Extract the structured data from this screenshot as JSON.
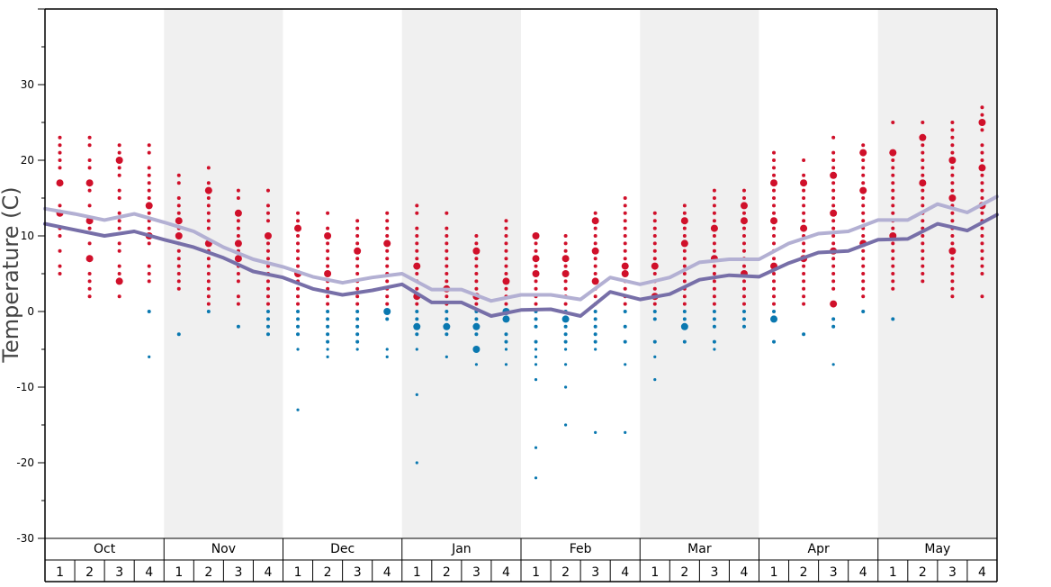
{
  "chart_data": {
    "type": "scatter",
    "title": "",
    "ylabel": "Temperature (C)",
    "xlabel": "",
    "ylim": [
      -30,
      40
    ],
    "y_ticks": [
      "30",
      "20",
      "10",
      "0",
      "-10",
      "-20",
      "-30"
    ],
    "months": [
      "Oct",
      "Nov",
      "Dec",
      "Jan",
      "Feb",
      "Mar",
      "Apr",
      "May"
    ],
    "weeks": [
      "1",
      "2",
      "3",
      "4"
    ],
    "colors": {
      "warm_points": "#d0102a",
      "cold_points": "#0a78b0",
      "upper_line": "#b3b0d3",
      "lower_line": "#776fa8",
      "shaded_month": "#f0f0f0"
    },
    "series": [
      {
        "values": [
          13.6,
          12.9,
          12.1,
          12.9,
          11.8,
          10.6,
          8.5,
          6.9,
          5.9,
          4.6,
          3.8,
          4.5,
          5.0,
          2.9,
          2.9,
          1.4,
          2.2,
          2.2,
          1.6,
          4.5,
          3.6,
          4.5,
          6.5,
          6.9,
          6.9,
          9.0,
          10.3,
          10.6,
          12.1,
          12.1,
          14.2,
          13.1,
          15.2
        ]
      },
      {
        "values": [
          11.6,
          10.8,
          10.0,
          10.6,
          9.5,
          8.5,
          7.1,
          5.3,
          4.5,
          3.0,
          2.2,
          2.8,
          3.6,
          1.2,
          1.2,
          -0.6,
          0.2,
          0.3,
          -0.6,
          2.6,
          1.6,
          2.3,
          4.2,
          4.8,
          4.6,
          6.4,
          7.8,
          8.0,
          9.5,
          9.6,
          11.6,
          10.7,
          12.8
        ]
      }
    ],
    "points": [
      {
        "week": 1,
        "temps": [
          23,
          22,
          21,
          20,
          19,
          17,
          14,
          13,
          11,
          10,
          8,
          6,
          5
        ],
        "big": [
          17,
          13
        ]
      },
      {
        "week": 2,
        "temps": [
          23,
          22,
          20,
          19,
          17,
          16,
          14,
          12,
          11,
          9,
          7,
          5,
          4,
          3,
          2
        ],
        "big": [
          17,
          12,
          7
        ]
      },
      {
        "week": 3,
        "temps": [
          22,
          21,
          20,
          19,
          18,
          16,
          15,
          13,
          12,
          11,
          9,
          8,
          6,
          5,
          4,
          2
        ],
        "big": [
          20,
          4
        ]
      },
      {
        "week": 4,
        "temps": [
          22,
          21,
          19,
          18,
          17,
          16,
          15,
          14,
          13,
          12,
          11,
          10,
          9,
          6,
          5,
          4,
          0,
          -6
        ],
        "big": [
          14,
          10
        ]
      },
      {
        "week": 5,
        "temps": [
          18,
          17,
          15,
          14,
          13,
          12,
          11,
          10,
          9,
          8,
          7,
          6,
          5,
          4,
          3,
          -3
        ],
        "big": [
          12,
          10
        ]
      },
      {
        "week": 6,
        "temps": [
          19,
          17,
          16,
          15,
          14,
          13,
          12,
          11,
          9,
          8,
          7,
          6,
          5,
          4,
          3,
          2,
          1,
          0
        ],
        "big": [
          16,
          9
        ]
      },
      {
        "week": 7,
        "temps": [
          16,
          15,
          13,
          12,
          11,
          10,
          9,
          8,
          7,
          6,
          5,
          4,
          2,
          1,
          -2
        ],
        "big": [
          13,
          9,
          7
        ]
      },
      {
        "week": 8,
        "temps": [
          16,
          14,
          13,
          12,
          10,
          9,
          8,
          7,
          6,
          5,
          4,
          3,
          2,
          1,
          0,
          -1,
          -2,
          -3
        ],
        "big": [
          10
        ]
      },
      {
        "week": 9,
        "temps": [
          13,
          12,
          11,
          10,
          9,
          8,
          7,
          6,
          5,
          4,
          3,
          2,
          1,
          0,
          -1,
          -2,
          -3,
          -5,
          -13
        ],
        "big": [
          11,
          5
        ]
      },
      {
        "week": 10,
        "temps": [
          13,
          11,
          10,
          9,
          8,
          7,
          6,
          5,
          4,
          3,
          2,
          1,
          0,
          -1,
          -2,
          -3,
          -4,
          -5,
          -6
        ],
        "big": [
          10,
          5
        ]
      },
      {
        "week": 11,
        "temps": [
          12,
          11,
          10,
          9,
          8,
          7,
          6,
          5,
          4,
          3,
          2,
          1,
          0,
          -1,
          -2,
          -3,
          -4,
          -5
        ],
        "big": [
          8
        ]
      },
      {
        "week": 12,
        "temps": [
          13,
          12,
          11,
          10,
          9,
          8,
          7,
          6,
          5,
          4,
          3,
          2,
          1,
          0,
          -1,
          -5,
          -6
        ],
        "big": [
          9,
          0
        ]
      },
      {
        "week": 13,
        "temps": [
          14,
          13,
          11,
          10,
          9,
          8,
          7,
          6,
          5,
          4,
          3,
          2,
          1,
          0,
          -1,
          -2,
          -3,
          -5,
          -11,
          -20
        ],
        "big": [
          6,
          2,
          -2
        ]
      },
      {
        "week": 14,
        "temps": [
          13,
          11,
          10,
          9,
          8,
          7,
          6,
          5,
          4,
          3,
          2,
          1,
          0,
          -1,
          -2,
          -3,
          -6
        ],
        "big": [
          3,
          -2
        ]
      },
      {
        "week": 15,
        "temps": [
          10,
          9,
          8,
          7,
          6,
          5,
          4,
          3,
          2,
          1,
          0,
          -1,
          -2,
          -3,
          -5,
          -7
        ],
        "big": [
          8,
          2,
          -2,
          -5
        ]
      },
      {
        "week": 16,
        "temps": [
          12,
          11,
          10,
          9,
          8,
          7,
          6,
          5,
          4,
          3,
          2,
          1,
          0,
          -1,
          -3,
          -4,
          -5,
          -7
        ],
        "big": [
          4,
          0,
          -1
        ]
      },
      {
        "week": 17,
        "temps": [
          10,
          9,
          8,
          7,
          6,
          5,
          4,
          3,
          2,
          1,
          0,
          -1,
          -2,
          -4,
          -5,
          -6,
          -7,
          -9,
          -18,
          -22
        ],
        "big": [
          10,
          7,
          5
        ]
      },
      {
        "week": 18,
        "temps": [
          10,
          9,
          8,
          7,
          6,
          5,
          4,
          3,
          2,
          1,
          0,
          -1,
          -2,
          -3,
          -4,
          -5,
          -7,
          -10,
          -15
        ],
        "big": [
          7,
          5,
          -1
        ]
      },
      {
        "week": 19,
        "temps": [
          13,
          12,
          11,
          10,
          9,
          8,
          7,
          6,
          5,
          4,
          3,
          2,
          1,
          0,
          -1,
          -2,
          -3,
          -4,
          -5,
          -16
        ],
        "big": [
          12,
          8,
          4
        ]
      },
      {
        "week": 20,
        "temps": [
          15,
          14,
          13,
          12,
          11,
          10,
          9,
          8,
          7,
          6,
          5,
          4,
          3,
          2,
          1,
          0,
          -2,
          -4,
          -7,
          -16
        ],
        "big": [
          6,
          5
        ]
      },
      {
        "week": 21,
        "temps": [
          13,
          12,
          11,
          10,
          9,
          8,
          7,
          6,
          5,
          4,
          3,
          2,
          1,
          0,
          -1,
          -4,
          -6,
          -9
        ],
        "big": [
          6,
          2
        ]
      },
      {
        "week": 22,
        "temps": [
          14,
          13,
          12,
          11,
          10,
          9,
          8,
          7,
          6,
          5,
          4,
          3,
          2,
          1,
          0,
          -1,
          -2,
          -4
        ],
        "big": [
          12,
          9,
          -2
        ]
      },
      {
        "week": 23,
        "temps": [
          16,
          15,
          14,
          13,
          12,
          11,
          10,
          9,
          8,
          7,
          6,
          5,
          4,
          3,
          2,
          1,
          0,
          -1,
          -2,
          -4,
          -5
        ],
        "big": [
          11,
          7
        ]
      },
      {
        "week": 24,
        "temps": [
          16,
          15,
          14,
          13,
          12,
          11,
          10,
          9,
          8,
          7,
          6,
          5,
          4,
          3,
          2,
          1,
          0,
          -1,
          -2
        ],
        "big": [
          14,
          12,
          5
        ]
      },
      {
        "week": 25,
        "temps": [
          21,
          20,
          19,
          18,
          17,
          16,
          15,
          14,
          13,
          12,
          11,
          10,
          9,
          8,
          7,
          6,
          5,
          4,
          3,
          2,
          1,
          0,
          -1,
          -4
        ],
        "big": [
          17,
          12,
          6,
          -1
        ]
      },
      {
        "week": 26,
        "temps": [
          20,
          18,
          17,
          16,
          15,
          14,
          13,
          12,
          11,
          10,
          9,
          8,
          7,
          6,
          5,
          4,
          3,
          2,
          1,
          -3
        ],
        "big": [
          17,
          11,
          7
        ]
      },
      {
        "week": 27,
        "temps": [
          23,
          21,
          20,
          19,
          18,
          17,
          16,
          15,
          14,
          13,
          12,
          11,
          10,
          9,
          8,
          7,
          6,
          5,
          4,
          3,
          1,
          -1,
          -2,
          -7
        ],
        "big": [
          18,
          13,
          8,
          1
        ]
      },
      {
        "week": 28,
        "temps": [
          22,
          21,
          20,
          19,
          18,
          17,
          16,
          15,
          14,
          13,
          12,
          11,
          10,
          9,
          8,
          7,
          6,
          5,
          4,
          3,
          2,
          0
        ],
        "big": [
          21,
          16,
          9
        ]
      },
      {
        "week": 29,
        "temps": [
          25,
          21,
          20,
          19,
          18,
          17,
          16,
          15,
          14,
          13,
          12,
          11,
          10,
          9,
          8,
          7,
          6,
          5,
          4,
          3,
          -1
        ],
        "big": [
          21,
          10
        ]
      },
      {
        "week": 30,
        "temps": [
          25,
          23,
          22,
          21,
          20,
          19,
          18,
          17,
          16,
          15,
          14,
          13,
          12,
          11,
          10,
          9,
          8,
          7,
          6,
          5,
          4
        ],
        "big": [
          23,
          17
        ]
      },
      {
        "week": 31,
        "temps": [
          25,
          24,
          23,
          22,
          21,
          20,
          19,
          18,
          17,
          16,
          15,
          14,
          13,
          12,
          11,
          10,
          9,
          8,
          7,
          6,
          5,
          4,
          3,
          2
        ],
        "big": [
          20,
          15,
          8
        ]
      },
      {
        "week": 32,
        "temps": [
          27,
          26,
          25,
          24,
          22,
          21,
          20,
          19,
          18,
          17,
          16,
          15,
          14,
          13,
          12,
          11,
          10,
          9,
          8,
          7,
          6,
          5,
          2
        ],
        "big": [
          25,
          19,
          14
        ]
      }
    ]
  }
}
